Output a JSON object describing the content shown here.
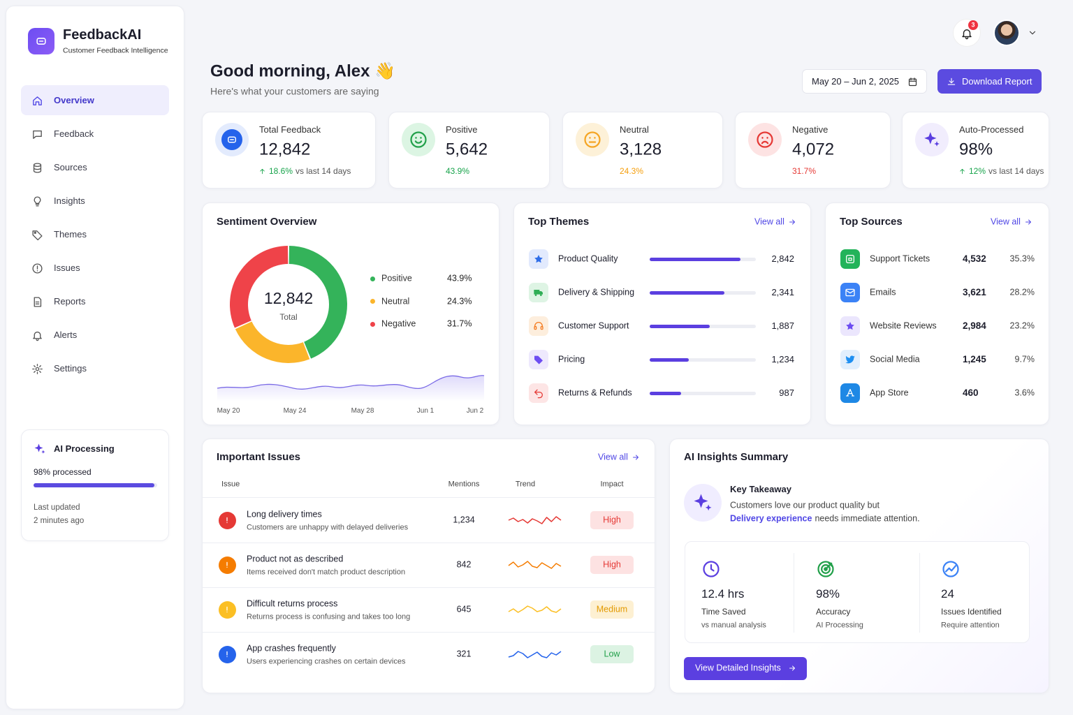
{
  "brand": {
    "name": "FeedbackAI",
    "tagline": "Customer Feedback Intelligence"
  },
  "nav": [
    "Overview",
    "Feedback",
    "Sources",
    "Insights",
    "Themes",
    "Issues",
    "Reports",
    "Alerts",
    "Settings"
  ],
  "ai_processing": {
    "title": "AI Processing",
    "status": "98% processed",
    "progress": 98,
    "updated": "Last updated",
    "updated_time": "2 minutes ago"
  },
  "notifications": "3",
  "greeting": {
    "title": "Good morning, Alex 👋",
    "subtitle": "Here's what your customers are saying"
  },
  "date_range": "May 20 – Jun 2, 2025",
  "download": "Download Report",
  "kpis": [
    {
      "label": "Total Feedback",
      "value": "12,842",
      "delta": "18.6%",
      "delta_note": "vs last 14 days"
    },
    {
      "label": "Positive",
      "value": "5,642",
      "delta": "43.9%"
    },
    {
      "label": "Neutral",
      "value": "3,128",
      "delta": "24.3%"
    },
    {
      "label": "Negative",
      "value": "4,072",
      "delta": "31.7%"
    },
    {
      "label": "Auto-Processed",
      "value": "98%",
      "delta": "12%",
      "delta_note": "vs last 14 days"
    }
  ],
  "sentiment": {
    "title": "Sentiment Overview",
    "total": "12,842",
    "total_label": "Total",
    "segments": [
      {
        "name": "Positive",
        "value": 43.9,
        "value_label": "43.9%",
        "color": "#34b35a"
      },
      {
        "name": "Neutral",
        "value": 24.3,
        "value_label": "24.3%",
        "color": "#fbb52b"
      },
      {
        "name": "Negative",
        "value": 31.7,
        "value_label": "31.7%",
        "color": "#ef4349"
      }
    ],
    "dates": [
      "May 20",
      "May 24",
      "May 28",
      "Jun 1",
      "Jun 2"
    ]
  },
  "themes": {
    "title": "Top Themes",
    "view_all": "View all",
    "items": [
      {
        "name": "Product Quality",
        "value": 2842,
        "value_label": "2,842"
      },
      {
        "name": "Delivery & Shipping",
        "value": 2341,
        "value_label": "2,341"
      },
      {
        "name": "Customer Support",
        "value": 1887,
        "value_label": "1,887"
      },
      {
        "name": "Pricing",
        "value": 1234,
        "value_label": "1,234"
      },
      {
        "name": "Returns & Refunds",
        "value": 987,
        "value_label": "987"
      }
    ]
  },
  "sources": {
    "title": "Top Sources",
    "view_all": "View all",
    "items": [
      {
        "name": "Support Tickets",
        "count": "4,532",
        "share": "35.3%"
      },
      {
        "name": "Emails",
        "count": "3,621",
        "share": "28.2%"
      },
      {
        "name": "Website Reviews",
        "count": "2,984",
        "share": "23.2%"
      },
      {
        "name": "Social Media",
        "count": "1,245",
        "share": "9.7%"
      },
      {
        "name": "App Store",
        "count": "460",
        "share": "3.6%"
      }
    ]
  },
  "issues": {
    "title": "Important Issues",
    "view_all": "View all",
    "columns": [
      "Issue",
      "Mentions",
      "Trend",
      "Impact"
    ],
    "rows": [
      {
        "title": "Long delivery times",
        "description": "Customers are unhappy with delayed deliveries",
        "mentions": "1,234",
        "impact": "High"
      },
      {
        "title": "Product not as described",
        "description": "Items received don't match product description",
        "mentions": "842",
        "impact": "High"
      },
      {
        "title": "Difficult returns process",
        "description": "Returns process is confusing and takes too long",
        "mentions": "645",
        "impact": "Medium"
      },
      {
        "title": "App crashes frequently",
        "description": "Users experiencing crashes on certain devices",
        "mentions": "321",
        "impact": "Low"
      }
    ]
  },
  "insights": {
    "title": "AI Insights Summary",
    "takeaway_title": "Key Takeaway",
    "takeaway_text": "Customers love our product quality but",
    "takeaway_highlight": "Delivery experience",
    "takeaway_rest": "needs immediate attention.",
    "stats": [
      {
        "value": "12.4 hrs",
        "label": "Time Saved",
        "note": "vs manual analysis"
      },
      {
        "value": "98%",
        "label": "Accuracy",
        "note": "AI Processing"
      },
      {
        "value": "24",
        "label": "Issues Identified",
        "note": "Require attention"
      }
    ],
    "button": "View Detailed Insights"
  }
}
